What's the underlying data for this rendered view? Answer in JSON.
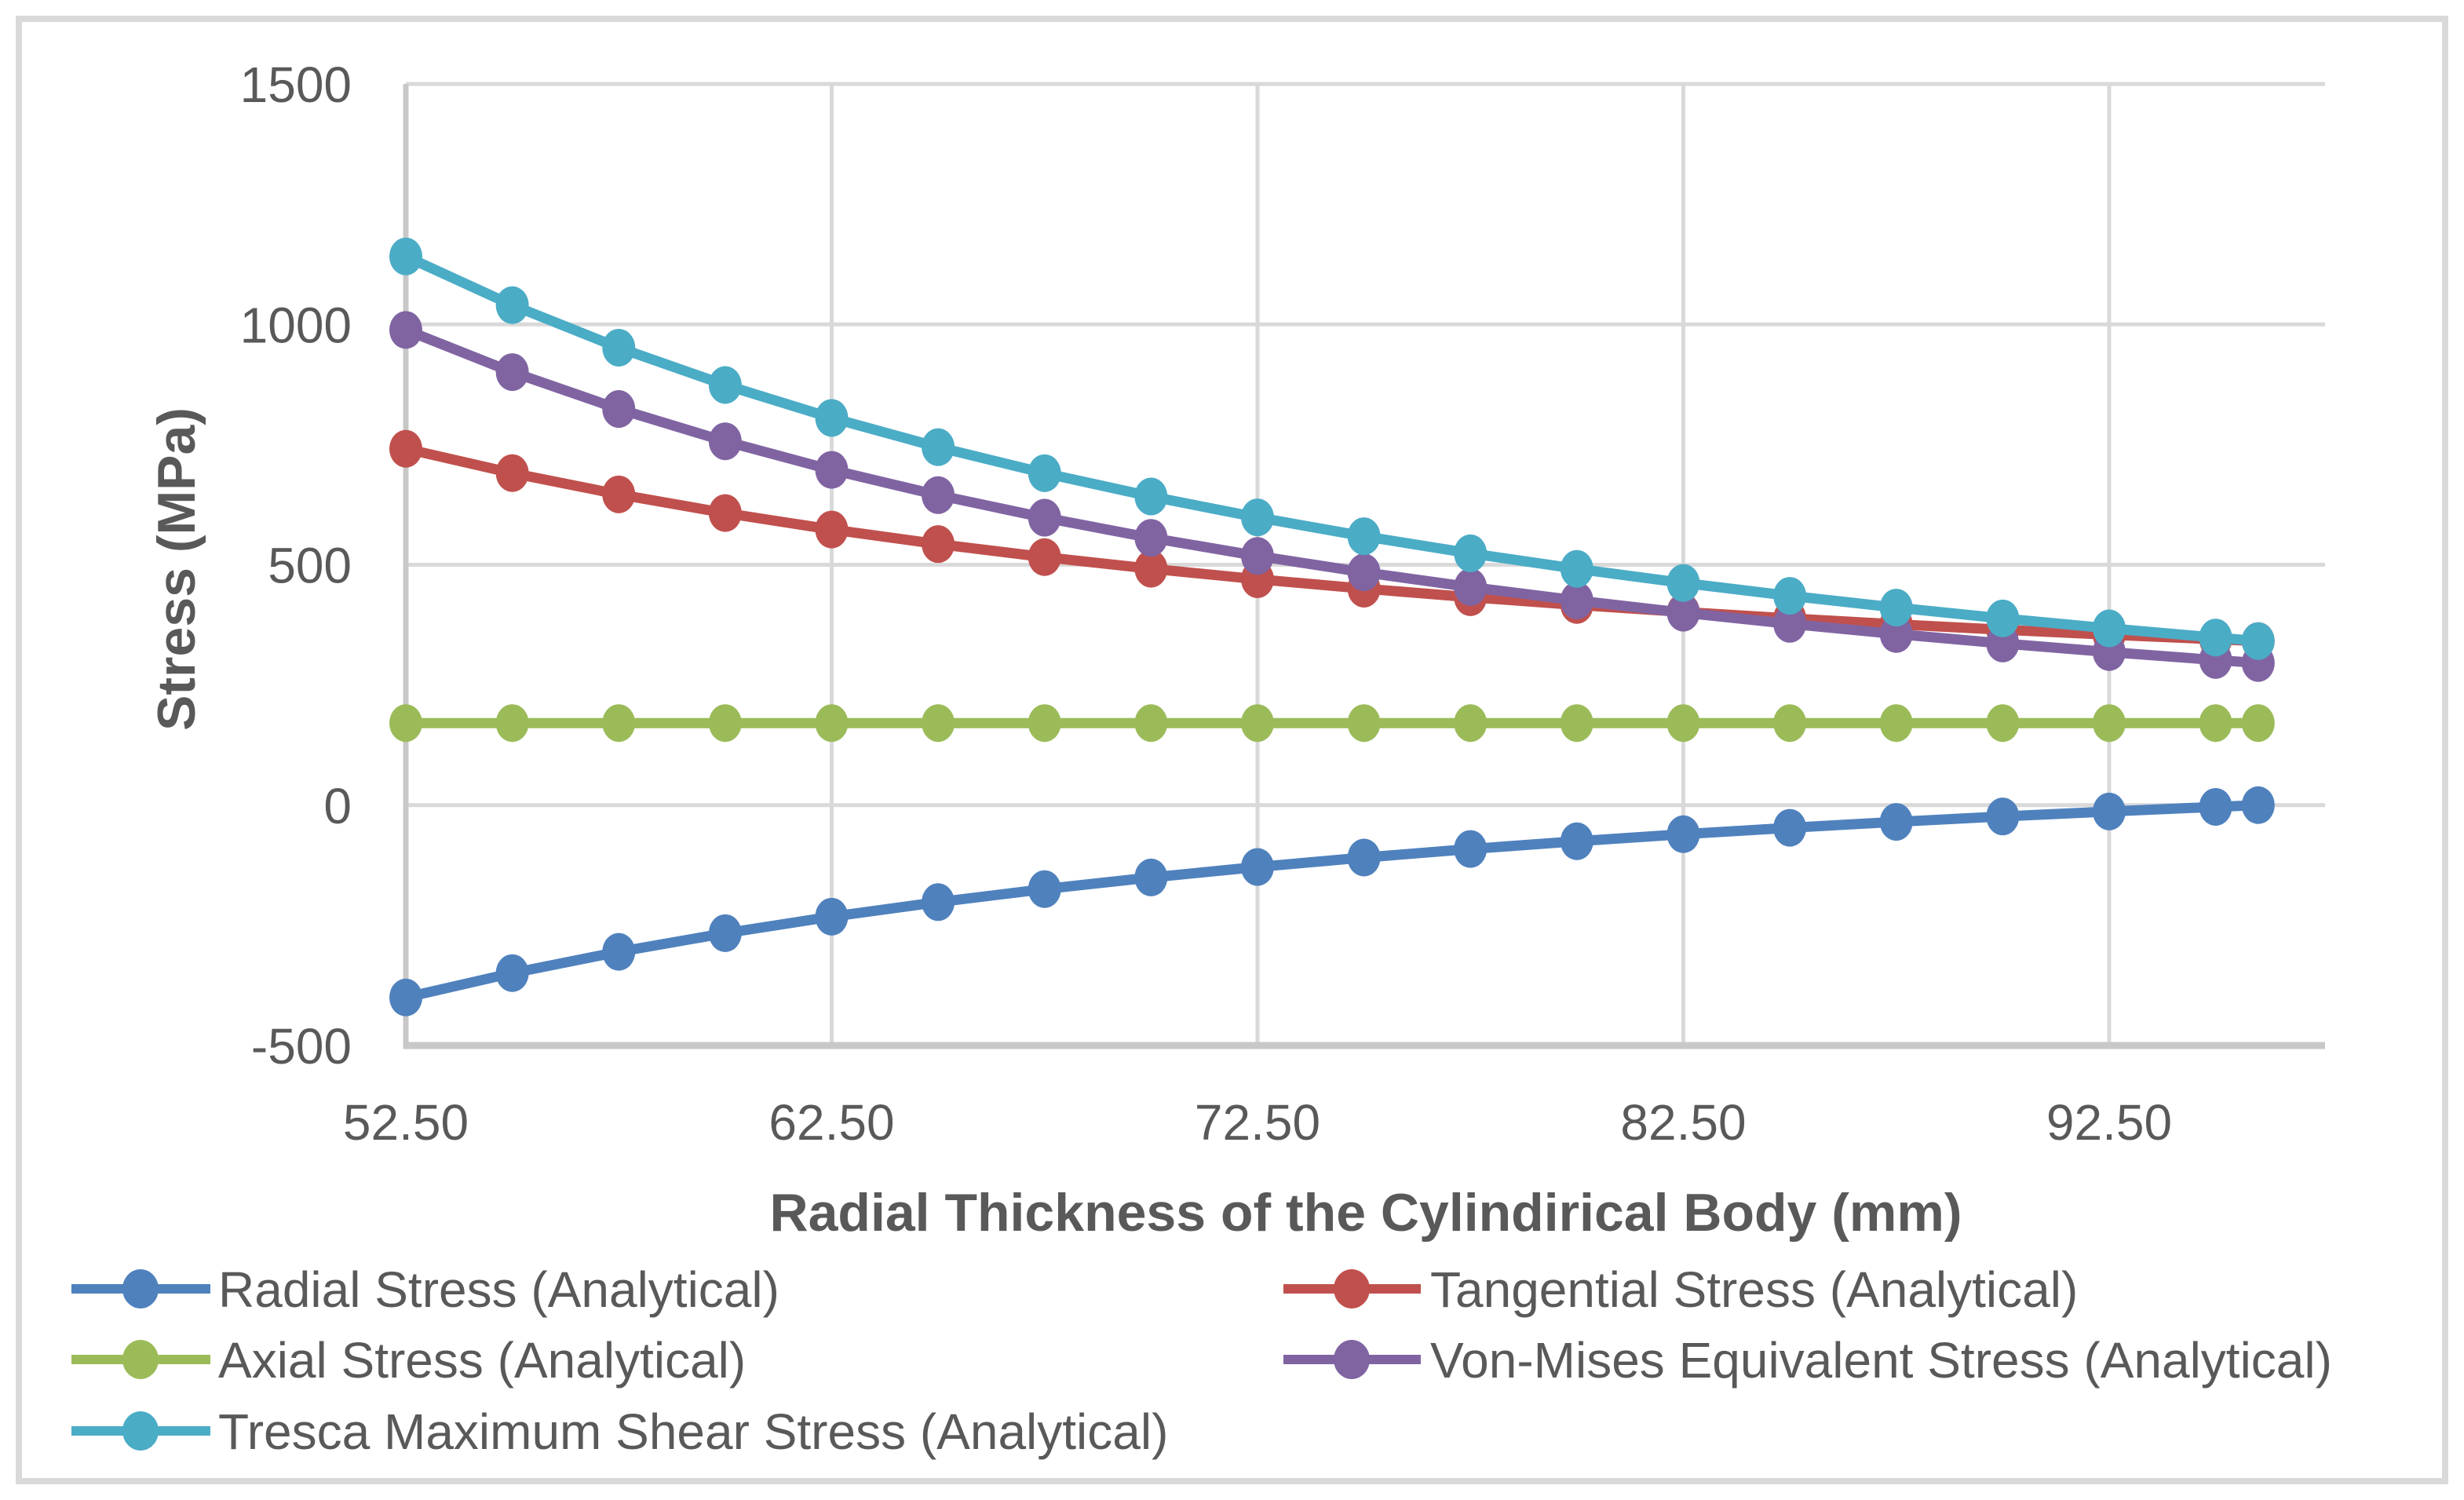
{
  "chart_data": {
    "type": "line",
    "title": "",
    "xlabel": "Radial Thickness of the Cylindirical Body (mm)",
    "ylabel": "Stress (MPa)",
    "x": [
      52.5,
      55,
      57.5,
      60,
      62.5,
      65,
      67.5,
      70,
      72.5,
      75,
      77.5,
      80,
      82.5,
      85,
      87.5,
      90,
      92.5,
      95,
      96
    ],
    "xlim": [
      52.5,
      97.57
    ],
    "ylim": [
      -500,
      1500
    ],
    "x_tick_values": [
      52.5,
      62.5,
      72.5,
      82.5,
      92.5
    ],
    "x_tick_labels": [
      "52.50",
      "62.50",
      "72.50",
      "82.50",
      "92.50"
    ],
    "y_tick_values": [
      1500,
      1000,
      500,
      0,
      -500
    ],
    "y_tick_labels": [
      "1500",
      "1000",
      "500",
      "0",
      "-500"
    ],
    "grid": true,
    "marker": "circle",
    "legend_position": "bottom",
    "series": [
      {
        "id": "radial-stress",
        "name": "Radial Stress (Analytical)",
        "color": "#4F81BD",
        "values": [
          -400.0,
          -349.3,
          -305.1,
          -266.3,
          -232.0,
          -201.7,
          -174.6,
          -150.4,
          -128.6,
          -109.0,
          -91.2,
          -75.1,
          -60.4,
          -47.1,
          -34.8,
          -23.5,
          -13.2,
          -3.6,
          0.0
        ]
      },
      {
        "id": "tangential-stress",
        "name": "Tangential Stress (Analytical)",
        "color": "#C0504D",
        "values": [
          741.3,
          690.7,
          646.4,
          607.6,
          573.3,
          543.0,
          515.9,
          491.7,
          469.9,
          450.3,
          432.5,
          416.4,
          401.8,
          388.4,
          376.1,
          364.8,
          354.5,
          344.9,
          341.3
        ]
      },
      {
        "id": "axial-stress",
        "name": "Axial Stress (Analytical)",
        "color": "#9BBB59",
        "values": [
          170.7,
          170.7,
          170.7,
          170.7,
          170.7,
          170.7,
          170.7,
          170.7,
          170.7,
          170.7,
          170.7,
          170.7,
          170.7,
          170.7,
          170.7,
          170.7,
          170.7,
          170.7,
          170.7
        ]
      },
      {
        "id": "von-mises-stress",
        "name": "Von-Mises Equivalent Stress (Analytical)",
        "color": "#8064A2",
        "values": [
          988.4,
          900.7,
          824.0,
          756.8,
          697.4,
          644.8,
          597.9,
          556.0,
          518.3,
          484.3,
          453.6,
          425.7,
          400.3,
          377.1,
          355.9,
          336.3,
          318.4,
          301.9,
          295.6
        ]
      },
      {
        "id": "tresca-stress",
        "name": "Tresca Maximum Shear Stress (Analytical)",
        "color": "#4BACC6",
        "values": [
          1141.3,
          1040.0,
          951.5,
          873.9,
          805.4,
          744.6,
          690.5,
          642.0,
          598.5,
          559.3,
          523.8,
          491.5,
          462.2,
          435.4,
          410.9,
          388.4,
          367.7,
          348.6,
          341.3
        ]
      }
    ],
    "style": {
      "background_color": "#FFFFFF",
      "chart_border_color": "#D9D9D9",
      "gridline_color": "#D9D9D9",
      "axis_line_color": "#C8C8C8",
      "text_color": "#595959"
    }
  }
}
